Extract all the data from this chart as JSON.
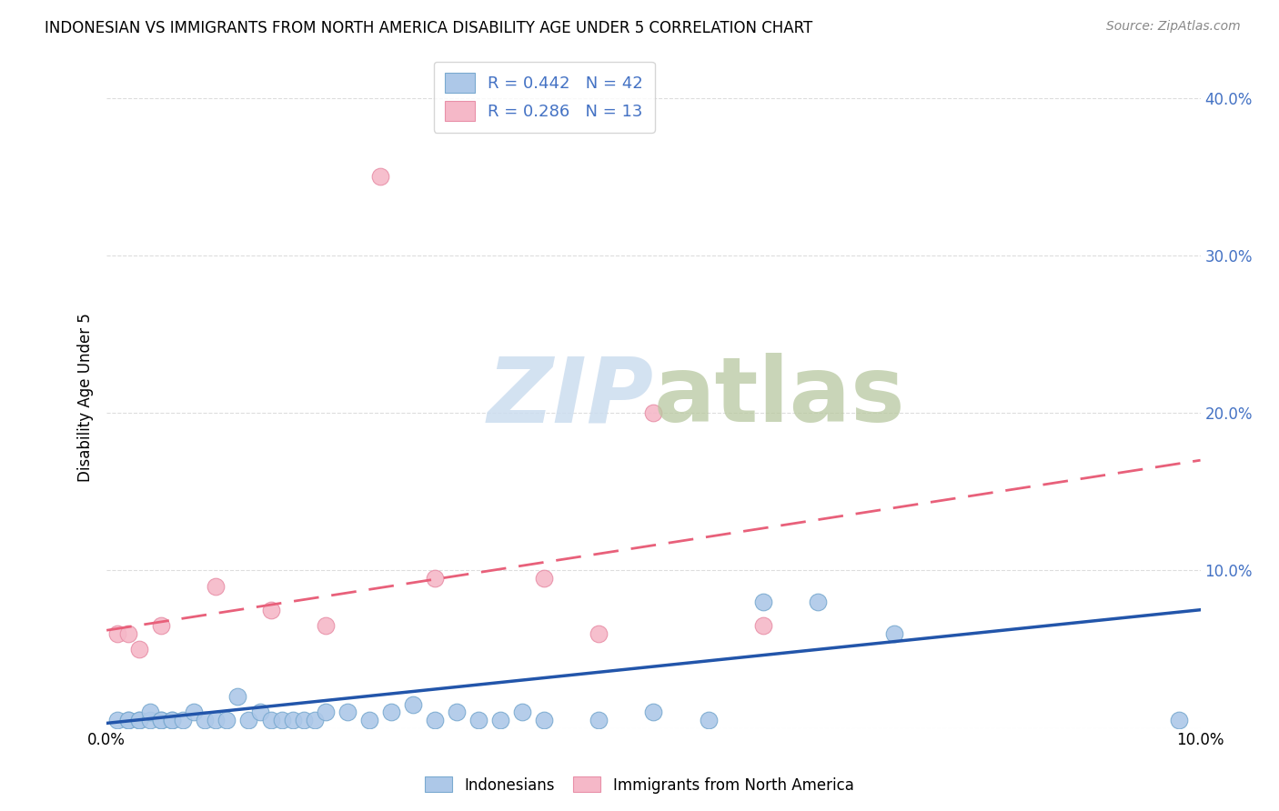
{
  "title": "INDONESIAN VS IMMIGRANTS FROM NORTH AMERICA DISABILITY AGE UNDER 5 CORRELATION CHART",
  "source": "Source: ZipAtlas.com",
  "ylabel": "Disability Age Under 5",
  "R_blue": 0.442,
  "N_blue": 42,
  "R_pink": 0.286,
  "N_pink": 13,
  "blue_color": "#adc8e8",
  "pink_color": "#f5b8c8",
  "blue_edge_color": "#7aaad0",
  "pink_edge_color": "#e890a8",
  "blue_line_color": "#2255aa",
  "pink_line_color": "#e8607a",
  "xlim": [
    0.0,
    0.1
  ],
  "ylim": [
    0.0,
    0.42
  ],
  "yticks": [
    0.0,
    0.1,
    0.2,
    0.3,
    0.4
  ],
  "ytick_labels": [
    "",
    "10.0%",
    "20.0%",
    "30.0%",
    "40.0%"
  ],
  "xticks": [
    0.0,
    0.02,
    0.04,
    0.06,
    0.08,
    0.1
  ],
  "xtick_labels": [
    "0.0%",
    "",
    "",
    "",
    "",
    "10.0%"
  ],
  "blue_scatter_x": [
    0.001,
    0.002,
    0.002,
    0.003,
    0.003,
    0.004,
    0.004,
    0.005,
    0.005,
    0.006,
    0.006,
    0.007,
    0.008,
    0.009,
    0.01,
    0.011,
    0.012,
    0.013,
    0.014,
    0.015,
    0.016,
    0.017,
    0.018,
    0.019,
    0.02,
    0.022,
    0.024,
    0.026,
    0.028,
    0.03,
    0.032,
    0.034,
    0.036,
    0.038,
    0.04,
    0.045,
    0.05,
    0.055,
    0.06,
    0.065,
    0.072,
    0.098
  ],
  "blue_scatter_y": [
    0.005,
    0.005,
    0.005,
    0.005,
    0.005,
    0.005,
    0.01,
    0.005,
    0.005,
    0.005,
    0.005,
    0.005,
    0.01,
    0.005,
    0.005,
    0.005,
    0.02,
    0.005,
    0.01,
    0.005,
    0.005,
    0.005,
    0.005,
    0.005,
    0.01,
    0.01,
    0.005,
    0.01,
    0.015,
    0.005,
    0.01,
    0.005,
    0.005,
    0.01,
    0.005,
    0.005,
    0.01,
    0.005,
    0.08,
    0.08,
    0.06,
    0.005
  ],
  "pink_scatter_x": [
    0.001,
    0.002,
    0.003,
    0.005,
    0.01,
    0.015,
    0.02,
    0.025,
    0.03,
    0.04,
    0.045,
    0.05,
    0.06
  ],
  "pink_scatter_y": [
    0.06,
    0.06,
    0.05,
    0.065,
    0.09,
    0.075,
    0.065,
    0.35,
    0.095,
    0.095,
    0.06,
    0.2,
    0.065
  ],
  "blue_line_x": [
    0.0,
    0.1
  ],
  "blue_line_y": [
    0.003,
    0.075
  ],
  "pink_line_x": [
    0.0,
    0.1
  ],
  "pink_line_y": [
    0.062,
    0.17
  ],
  "background_color": "#ffffff",
  "grid_color": "#dddddd",
  "tick_color": "#4472c4",
  "watermark_color": "#ccddef",
  "title_fontsize": 12,
  "source_fontsize": 10,
  "tick_fontsize": 12,
  "ylabel_fontsize": 12
}
